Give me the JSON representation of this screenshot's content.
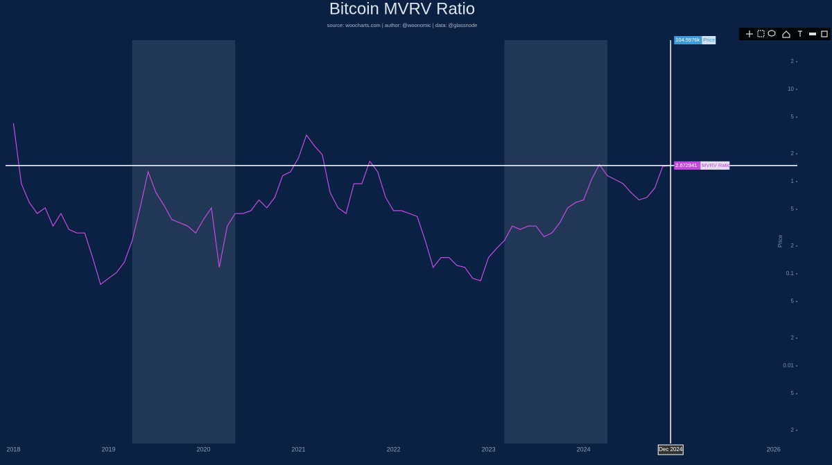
{
  "chart_data": {
    "type": "line",
    "title": "Bitcoin MVRV Ratio",
    "subtitle": "source: woocharts.com | author: @woonomic | data: @glassnode",
    "y2label": "Price",
    "x": [
      "2018-01",
      "2018-02",
      "2018-03",
      "2018-04",
      "2018-05",
      "2018-06",
      "2018-07",
      "2018-08",
      "2018-09",
      "2018-10",
      "2018-11",
      "2018-12",
      "2019-01",
      "2019-02",
      "2019-03",
      "2019-04",
      "2019-05",
      "2019-06",
      "2019-07",
      "2019-08",
      "2019-09",
      "2019-10",
      "2019-11",
      "2019-12",
      "2020-01",
      "2020-02",
      "2020-03",
      "2020-04",
      "2020-05",
      "2020-06",
      "2020-07",
      "2020-08",
      "2020-09",
      "2020-10",
      "2020-11",
      "2020-12",
      "2021-01",
      "2021-02",
      "2021-03",
      "2021-04",
      "2021-05",
      "2021-06",
      "2021-07",
      "2021-08",
      "2021-09",
      "2021-10",
      "2021-11",
      "2021-12",
      "2022-01",
      "2022-02",
      "2022-03",
      "2022-04",
      "2022-05",
      "2022-06",
      "2022-07",
      "2022-08",
      "2022-09",
      "2022-10",
      "2022-11",
      "2022-12",
      "2023-01",
      "2023-02",
      "2023-03",
      "2023-04",
      "2023-05",
      "2023-06",
      "2023-07",
      "2023-08",
      "2023-09",
      "2023-10",
      "2023-11",
      "2023-12",
      "2024-01",
      "2024-02",
      "2024-03",
      "2024-04",
      "2024-05",
      "2024-06",
      "2024-07",
      "2024-08",
      "2024-09",
      "2024-10",
      "2024-11",
      "2024-12"
    ],
    "series": [
      {
        "name": "MVRV Ratio",
        "color": "#c44be0",
        "values": [
          4.2,
          2.2,
          1.8,
          1.6,
          1.7,
          1.4,
          1.6,
          1.35,
          1.3,
          1.3,
          1.0,
          0.75,
          0.8,
          0.85,
          0.95,
          1.2,
          1.7,
          2.5,
          2.0,
          1.75,
          1.5,
          1.45,
          1.4,
          1.3,
          1.5,
          1.7,
          0.9,
          1.4,
          1.6,
          1.6,
          1.65,
          1.85,
          1.7,
          1.9,
          2.4,
          2.5,
          2.9,
          3.7,
          3.3,
          3.0,
          2.0,
          1.7,
          1.6,
          2.2,
          2.2,
          2.8,
          2.5,
          1.9,
          1.65,
          1.65,
          1.6,
          1.55,
          1.2,
          0.9,
          1.0,
          1.0,
          0.92,
          0.9,
          0.8,
          0.78,
          1.0,
          1.1,
          1.2,
          1.4,
          1.35,
          1.4,
          1.4,
          1.25,
          1.3,
          1.45,
          1.7,
          1.8,
          1.85,
          2.3,
          2.7,
          2.4,
          2.3,
          2.2,
          2.0,
          1.85,
          1.9,
          2.1,
          2.65,
          2.67
        ]
      }
    ],
    "ylim": [
      0.137,
      10.2
    ],
    "ylog": true,
    "y2lim": [
      0.00144,
      34.2
    ],
    "y2log": true,
    "y2ticks": [
      {
        "value": 20,
        "label": "2"
      },
      10,
      {
        "value": 5,
        "label": "5"
      },
      {
        "value": 2,
        "label": "2"
      },
      1,
      {
        "value": 0.5,
        "label": "5"
      },
      {
        "value": 0.2,
        "label": "2"
      },
      0.1,
      {
        "value": 0.05,
        "label": "5"
      },
      {
        "value": 0.02,
        "label": "2"
      },
      0.01,
      {
        "value": 0.005,
        "label": "5"
      },
      {
        "value": 0.002,
        "label": "2"
      }
    ],
    "xlim": [
      "2017-12",
      "2026-04"
    ],
    "xticks": [
      "2018",
      "2019",
      "2020",
      "2021",
      "2022",
      "2023",
      "2024",
      "2026"
    ],
    "shaded": [
      [
        "2019-04",
        "2020-05"
      ],
      [
        "2023-03",
        "2024-04"
      ]
    ],
    "hover": {
      "x": {
        "value": "2024-12",
        "label": "Dec 2024"
      },
      "mvrv": 2.672941,
      "price": {
        "value": 104597.6,
        "label": "104.5976k"
      }
    }
  }
}
